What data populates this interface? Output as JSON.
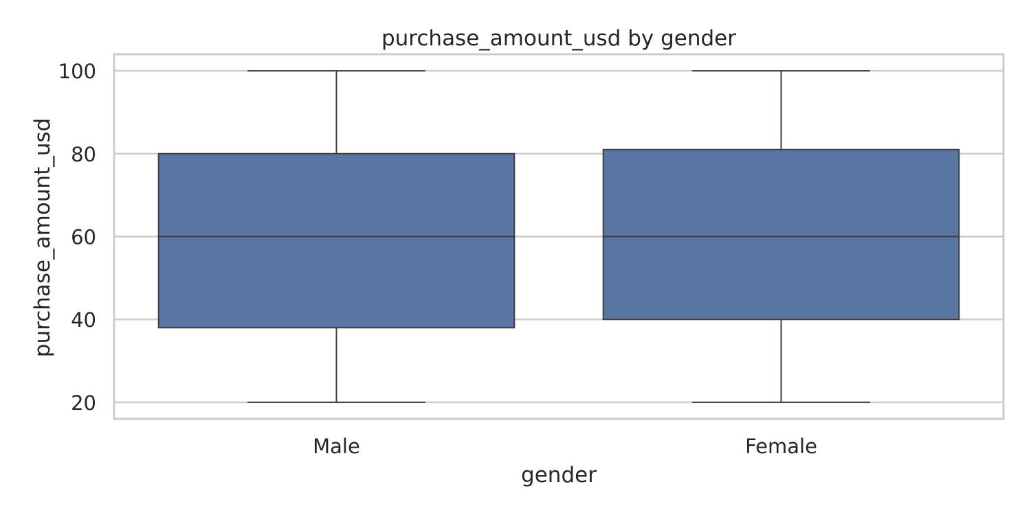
{
  "chart_data": {
    "type": "box",
    "title": "purchase_amount_usd by gender",
    "xlabel": "gender",
    "ylabel": "purchase_amount_usd",
    "ylim": [
      16,
      104
    ],
    "yticks": [
      20,
      40,
      60,
      80,
      100
    ],
    "grid": "horizontal",
    "legend": "none",
    "box_color": "#5875a4",
    "line_color": "#3d3d3d",
    "grid_color": "#cccccc",
    "categories": [
      "Male",
      "Female"
    ],
    "boxes": [
      {
        "category": "Male",
        "min": 20,
        "q1": 38,
        "median": 60,
        "q3": 80,
        "max": 100
      },
      {
        "category": "Female",
        "min": 20,
        "q1": 40,
        "median": 60,
        "q3": 81,
        "max": 100
      }
    ]
  }
}
